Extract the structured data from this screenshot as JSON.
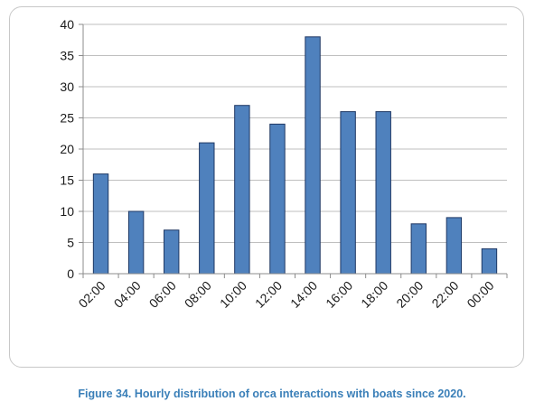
{
  "chart_data": {
    "type": "bar",
    "categories": [
      "02:00",
      "04:00",
      "06:00",
      "08:00",
      "10:00",
      "12:00",
      "14:00",
      "16:00",
      "18:00",
      "20:00",
      "22:00",
      "00:00"
    ],
    "values": [
      16,
      10,
      7,
      21,
      27,
      24,
      38,
      26,
      26,
      8,
      9,
      4
    ],
    "yticks": [
      0,
      5,
      10,
      15,
      20,
      25,
      30,
      35,
      40
    ],
    "ylim": [
      0,
      40
    ],
    "grid": true,
    "legend": "none",
    "bar_color": "#4f81bd",
    "bar_edge_color": "#1f3864"
  },
  "caption": "Figure 34. Hourly distribution of orca interactions with boats since 2020."
}
